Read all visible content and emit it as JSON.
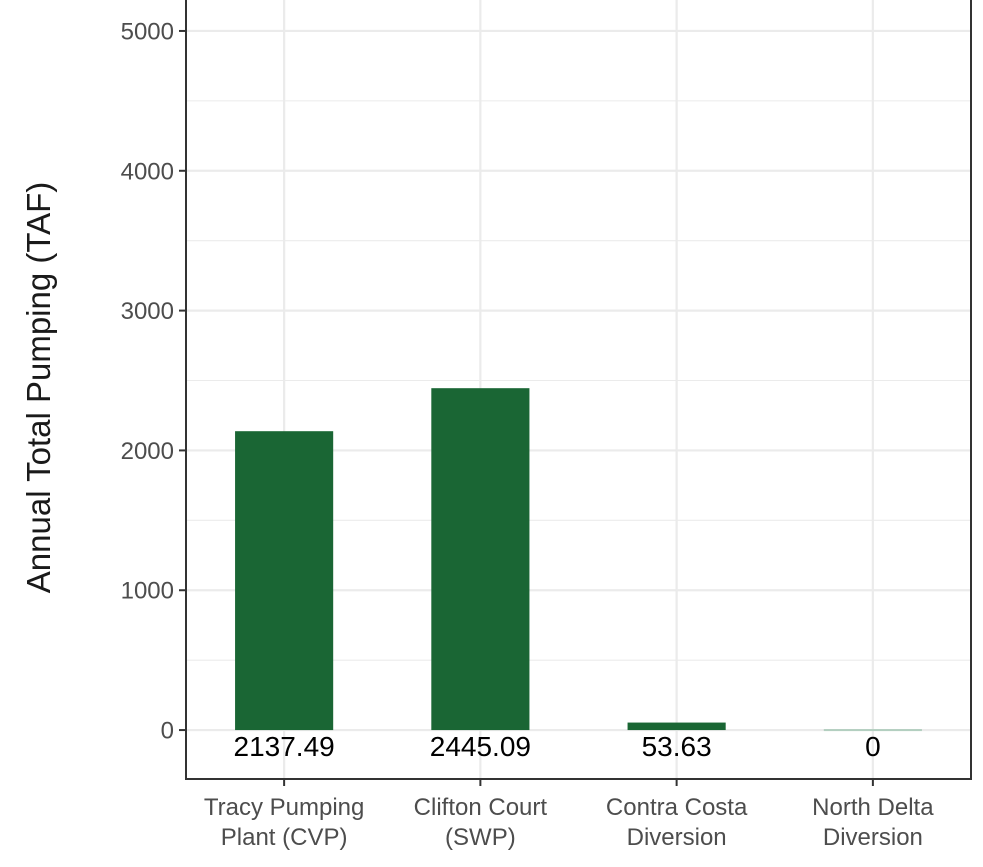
{
  "chart_data": {
    "type": "bar",
    "categories": [
      [
        "Tracy Pumping",
        "Plant (CVP)"
      ],
      [
        "Clifton Court",
        "(SWP)"
      ],
      [
        "Contra Costa",
        "Diversion"
      ],
      [
        "North Delta",
        "Diversion"
      ]
    ],
    "values": [
      2137.49,
      2445.09,
      53.63,
      0
    ],
    "data_labels": [
      "2137.49",
      "2445.09",
      "53.63",
      "0"
    ],
    "title": "",
    "xlabel": "",
    "ylabel": "Annual Total Pumping (TAF)",
    "ylim": [
      -350,
      5250
    ],
    "yticks": [
      0,
      1000,
      2000,
      3000,
      4000,
      5000
    ],
    "grid": true,
    "bar_color": "#1a6634",
    "zero_bar_color": "#b3cfc0"
  }
}
